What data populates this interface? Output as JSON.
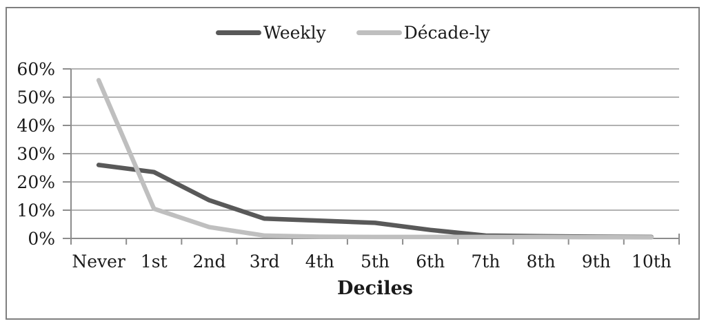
{
  "chart_data": {
    "type": "line",
    "title": "",
    "categories": [
      "Never",
      "1st",
      "2nd",
      "3rd",
      "4th",
      "5th",
      "6th",
      "7th",
      "8th",
      "9th",
      "10th"
    ],
    "series": [
      {
        "name": "Weekly",
        "color": "#595959",
        "values": [
          26,
          23.5,
          13.5,
          7,
          6.3,
          5.5,
          3,
          1,
          0.8,
          0.6,
          0.5
        ]
      },
      {
        "name": "Décade-ly",
        "color": "#bfbfbf",
        "values": [
          56,
          10.5,
          4,
          1,
          0.6,
          0.5,
          0.5,
          0.5,
          0.5,
          0.45,
          0.4
        ]
      }
    ],
    "xlabel": "Deciles",
    "ylabel": "",
    "ylim": [
      0,
      60
    ],
    "ytick_step": 10,
    "ytick_labels": [
      "0%",
      "10%",
      "20%",
      "30%",
      "40%",
      "50%",
      "60%"
    ],
    "grid": true,
    "legend_position": "top"
  },
  "colors": {
    "background": "#ffffff",
    "figure_border": "#7f7f7f",
    "gridline": "#a6a6a6",
    "axis": "#8c8c8c",
    "text": "#1a1a1a"
  }
}
